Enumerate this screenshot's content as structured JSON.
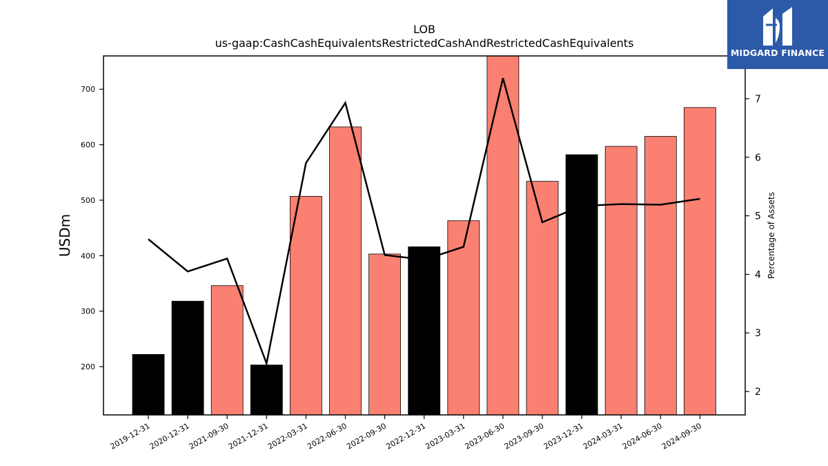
{
  "logo": {
    "text": "MIDGARD FINANCE",
    "bg_color": "#2d5aa8"
  },
  "chart_data": {
    "type": "bar",
    "title": "LOB",
    "subtitle": "us-gaap:CashCashEquivalentsRestrictedCashAndRestrictedCashEquivalents",
    "ylabel": "USDm",
    "y2label": "Percentage of Assets",
    "ylim": [
      113,
      760
    ],
    "y2lim": [
      1.6,
      7.73
    ],
    "yticks": [
      200,
      300,
      400,
      500,
      600,
      700
    ],
    "y2ticks": [
      2,
      3,
      4,
      5,
      6,
      7
    ],
    "categories": [
      "2019-12-31",
      "2020-12-31",
      "2021-09-30",
      "2021-12-31",
      "2022-03-31",
      "2022-06-30",
      "2022-09-30",
      "2022-12-31",
      "2023-03-31",
      "2023-06-30",
      "2023-09-30",
      "2023-12-31",
      "2024-03-31",
      "2024-06-30",
      "2024-09-30"
    ],
    "series": [
      {
        "type": "bar",
        "values": [
          222,
          318,
          346,
          203,
          507,
          632,
          403,
          416,
          463,
          760,
          534,
          582,
          597,
          615,
          667
        ],
        "colors": [
          "#000000",
          "#000000",
          "#fa8072",
          "#000000",
          "#fa8072",
          "#fa8072",
          "#fa8072",
          "#000000",
          "#fa8072",
          "#fa8072",
          "#fa8072",
          "#000000",
          "#fa8072",
          "#fa8072",
          "#fa8072"
        ]
      },
      {
        "type": "line",
        "axis": "right",
        "color": "#000000",
        "values": [
          4.6,
          4.05,
          4.27,
          2.48,
          5.9,
          6.93,
          4.33,
          4.25,
          4.47,
          7.35,
          4.89,
          5.17,
          5.2,
          5.19,
          5.29
        ]
      }
    ],
    "grid": false,
    "legend": "none"
  }
}
